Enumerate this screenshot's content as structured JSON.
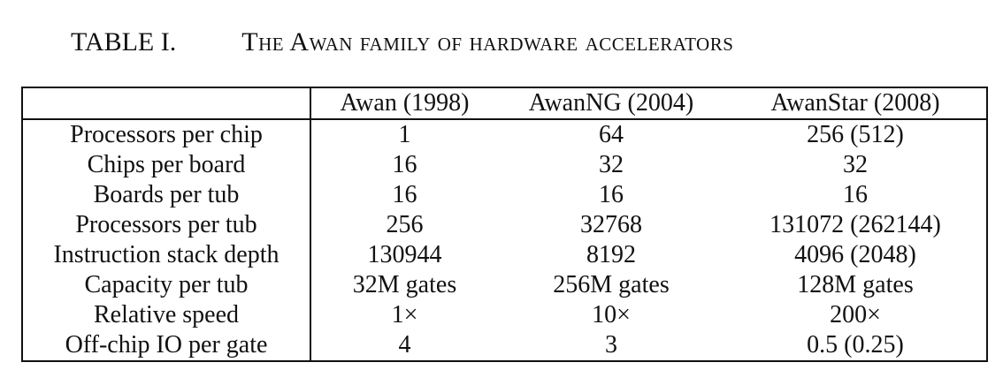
{
  "caption": {
    "label": "TABLE I.",
    "title": "The Awan family of hardware accelerators"
  },
  "table": {
    "headers": [
      "",
      "Awan (1998)",
      "AwanNG (2004)",
      "AwanStar (2008)"
    ],
    "rows": [
      [
        "Processors per chip",
        "1",
        "64",
        "256 (512)"
      ],
      [
        "Chips per board",
        "16",
        "32",
        "32"
      ],
      [
        "Boards per tub",
        "16",
        "16",
        "16"
      ],
      [
        "Processors per tub",
        "256",
        "32768",
        "131072 (262144)"
      ],
      [
        "Instruction stack depth",
        "130944",
        "8192",
        "4096 (2048)"
      ],
      [
        "Capacity per tub",
        "32M gates",
        "256M gates",
        "128M gates"
      ],
      [
        "Relative speed",
        "1×",
        "10×",
        "200×"
      ],
      [
        "Off-chip IO per gate",
        "4",
        "3",
        "0.5 (0.25)"
      ]
    ]
  }
}
